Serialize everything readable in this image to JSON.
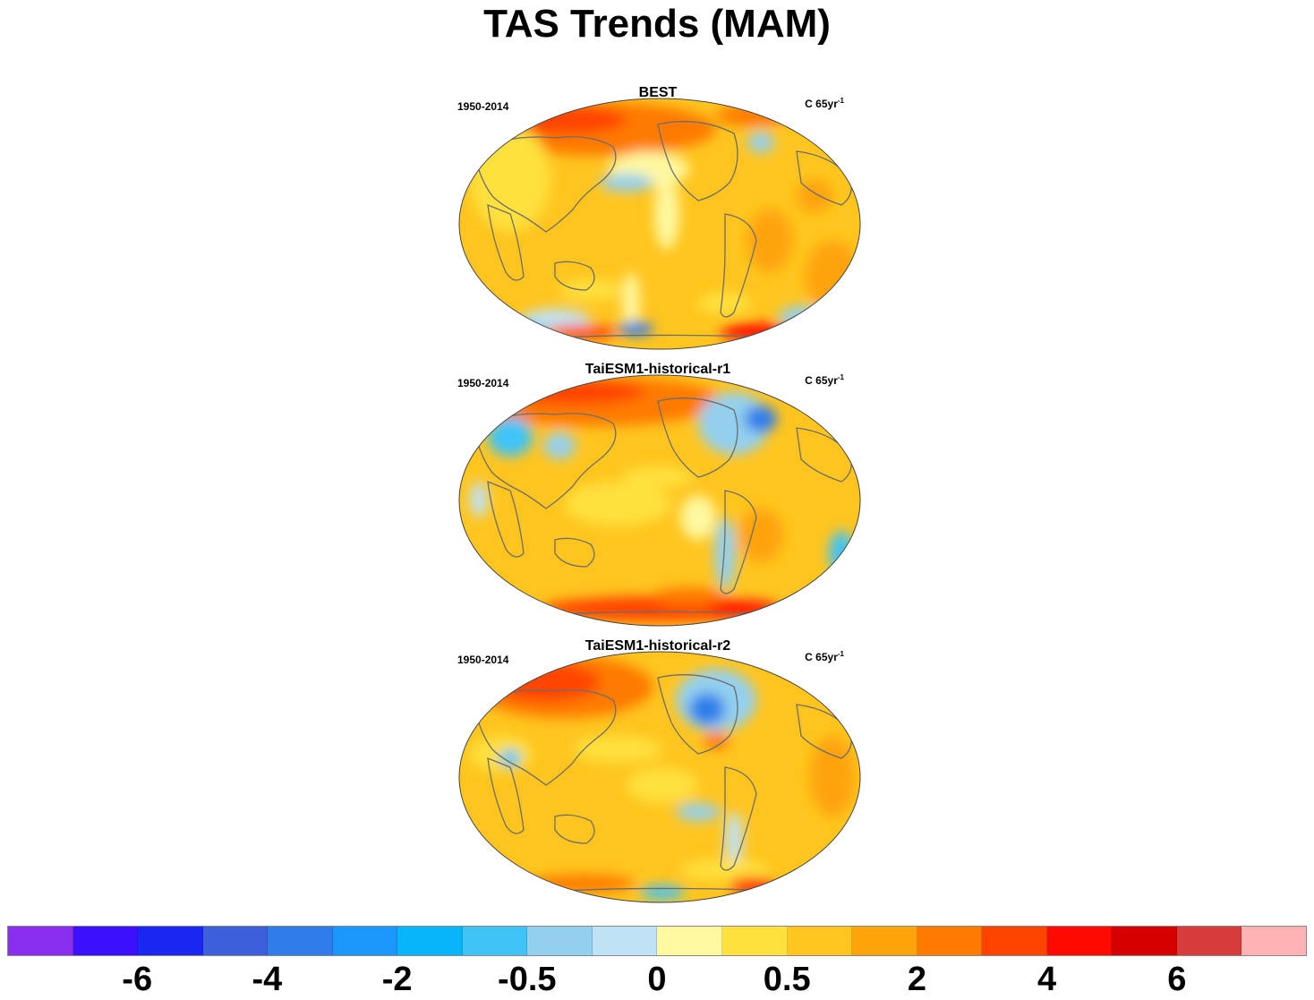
{
  "title": "TAS Trends (MAM)",
  "panels": [
    {
      "title": "BEST",
      "period": "1950-2014",
      "units_base": "C 65yr",
      "units_sup": "-1"
    },
    {
      "title": "TaiESM1-historical-r1",
      "period": "1950-2014",
      "units_base": "C 65yr",
      "units_sup": "-1"
    },
    {
      "title": "TaiESM1-historical-r2",
      "period": "1950-2014",
      "units_base": "C 65yr",
      "units_sup": "-1"
    }
  ],
  "colorbar": {
    "colors": [
      "#8a2ff0",
      "#3a10ff",
      "#1a26f2",
      "#3d5fdc",
      "#2f7deb",
      "#1b96fb",
      "#07b5fb",
      "#40c4f7",
      "#93d0ef",
      "#bfe2f5",
      "#fff8a0",
      "#ffe03c",
      "#ffc51e",
      "#ffa30a",
      "#ff7a00",
      "#ff4400",
      "#ff0a00",
      "#d70000",
      "#d73c3c",
      "#ffb3b3"
    ],
    "labels": [
      {
        "text": "-6",
        "boundary": 2
      },
      {
        "text": "-4",
        "boundary": 4
      },
      {
        "text": "-2",
        "boundary": 6
      },
      {
        "text": "-0.5",
        "boundary": 8
      },
      {
        "text": "0",
        "boundary": 10
      },
      {
        "text": "0.5",
        "boundary": 12
      },
      {
        "text": "2",
        "boundary": 14
      },
      {
        "text": "4",
        "boundary": 16
      },
      {
        "text": "6",
        "boundary": 18
      }
    ]
  }
}
